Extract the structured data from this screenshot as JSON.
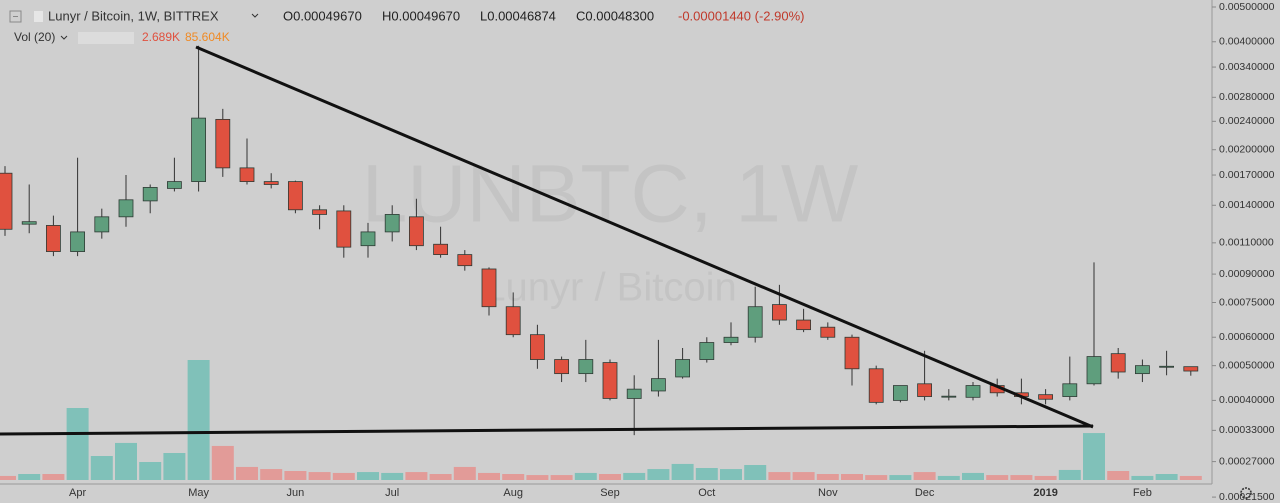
{
  "chart_data": {
    "type": "candlestick",
    "symbol": "Lunyr / Bitcoin, 1W, BITTREX",
    "ohlc_labels": [
      "O0.00049670",
      "H0.00049670",
      "L0.00046874",
      "C0.00048300"
    ],
    "change_label": "-0.00001440 (-2.90%)",
    "volume_title": "Vol (20)",
    "volume_labels": [
      "2.689K",
      "85.604K"
    ],
    "watermark": "LUNBTC, 1W",
    "watermark_sub": "Lunyr / Bitcoin",
    "categories": [
      null,
      null,
      null,
      "Apr",
      null,
      null,
      null,
      null,
      "May",
      null,
      null,
      null,
      "Jun",
      null,
      null,
      null,
      "Jul",
      null,
      null,
      null,
      null,
      "Aug",
      null,
      null,
      null,
      "Sep",
      null,
      null,
      null,
      "Oct",
      null,
      null,
      null,
      null,
      "Nov",
      null,
      null,
      null,
      "Dec",
      null,
      null,
      null,
      null,
      "2019",
      null,
      null,
      null,
      "Feb",
      null,
      null
    ],
    "open": [
      0.00172,
      0.00124,
      0.00123,
      0.00104,
      0.00118,
      0.0013,
      0.00144,
      0.00156,
      0.00163,
      0.00243,
      0.00178,
      0.00163,
      0.00163,
      0.00136,
      0.00135,
      0.00108,
      0.00118,
      0.0013,
      0.00109,
      0.00102,
      0.00093,
      0.00073,
      0.00061,
      0.00052,
      0.000475,
      0.00051,
      0.000405,
      0.000425,
      0.000465,
      0.00052,
      0.00058,
      0.0006,
      0.00074,
      0.00067,
      0.00064,
      0.0006,
      0.00049,
      0.0004,
      0.000445,
      0.00041,
      0.000408,
      0.00044,
      0.00042,
      0.000415,
      0.00041,
      0.000445,
      0.00054,
      0.000475,
      0.000497,
      0.0004967
    ],
    "high": [
      0.0018,
      0.0016,
      0.00131,
      0.0019,
      0.00137,
      0.0017,
      0.0016,
      0.0019,
      0.0039,
      0.0026,
      0.00215,
      0.00172,
      0.00164,
      0.0014,
      0.0014,
      0.00125,
      0.0014,
      0.00146,
      0.00122,
      0.00105,
      0.00094,
      0.0008,
      0.00065,
      0.00053,
      0.00059,
      0.00052,
      0.00047,
      0.00059,
      0.00056,
      0.0006,
      0.00066,
      0.00083,
      0.00084,
      0.00072,
      0.00066,
      0.00061,
      0.0005,
      0.00044,
      0.00055,
      0.00043,
      0.00045,
      0.00046,
      0.00046,
      0.00043,
      0.00053,
      0.00097,
      0.00056,
      0.00052,
      0.00055,
      0.0004967
    ],
    "low": [
      0.00115,
      0.00117,
      0.00101,
      0.00101,
      0.00113,
      0.00122,
      0.00133,
      0.00153,
      0.00153,
      0.00168,
      0.0016,
      0.00156,
      0.00133,
      0.0012,
      0.001,
      0.001,
      0.00111,
      0.00105,
      0.001,
      0.00092,
      0.00069,
      0.0006,
      0.00049,
      0.00045,
      0.00045,
      0.0004,
      0.00032,
      0.00041,
      0.00046,
      0.00051,
      0.00057,
      0.00058,
      0.00065,
      0.00062,
      0.00059,
      0.00044,
      0.00039,
      0.000395,
      0.0004,
      0.0004,
      0.0004,
      0.00041,
      0.00039,
      0.00039,
      0.0004,
      0.00044,
      0.00046,
      0.00045,
      0.00047,
      0.00046874
    ],
    "close": [
      0.0012,
      0.00126,
      0.00104,
      0.00118,
      0.0013,
      0.00145,
      0.00157,
      0.00163,
      0.00245,
      0.00178,
      0.00163,
      0.0016,
      0.00136,
      0.00132,
      0.00107,
      0.00118,
      0.00132,
      0.00108,
      0.00102,
      0.00095,
      0.00073,
      0.00061,
      0.00052,
      0.000475,
      0.00052,
      0.000405,
      0.00043,
      0.00046,
      0.00052,
      0.00058,
      0.0006,
      0.00073,
      0.00067,
      0.00063,
      0.0006,
      0.00049,
      0.000395,
      0.00044,
      0.00041,
      0.000411,
      0.00044,
      0.00042,
      0.00041,
      0.000403,
      0.000445,
      0.00053,
      0.00048,
      0.0005,
      0.000498,
      0.000483
    ],
    "volume": [
      2.7,
      4,
      4,
      48,
      16,
      24.7,
      12,
      18,
      80,
      22.7,
      8.7,
      7.3,
      6,
      5.3,
      4.7,
      5.3,
      4.7,
      5.3,
      4,
      8.7,
      4.7,
      4,
      3.3,
      3.3,
      4.7,
      4,
      4.7,
      7.3,
      10.7,
      8,
      7.3,
      10,
      5.3,
      5.3,
      4,
      4,
      3.3,
      3.3,
      5.3,
      2.7,
      4.7,
      3.3,
      3.3,
      2.7,
      6.7,
      31.3,
      6,
      2.7,
      4,
      2.689
    ],
    "vlim": [
      0,
      120
    ],
    "log": true,
    "ylim": [
      0.000207,
      0.00523
    ],
    "yticks": [
      {
        "value": 0.005,
        "label": "0.00500000"
      },
      {
        "value": 0.004,
        "label": "0.00400000"
      },
      {
        "value": 0.0034,
        "label": "0.00340000"
      },
      {
        "value": 0.0028,
        "label": "0.00280000"
      },
      {
        "value": 0.0024,
        "label": "0.00240000"
      },
      {
        "value": 0.002,
        "label": "0.00200000"
      },
      {
        "value": 0.0017,
        "label": "0.00170000"
      },
      {
        "value": 0.0014,
        "label": "0.00140000"
      },
      {
        "value": 0.0011,
        "label": "0.00110000"
      },
      {
        "value": 0.0009,
        "label": "0.00090000"
      },
      {
        "value": 0.00075,
        "label": "0.00075000"
      },
      {
        "value": 0.0006,
        "label": "0.00060000"
      },
      {
        "value": 0.0005,
        "label": "0.00050000"
      },
      {
        "value": 0.0004,
        "label": "0.00040000"
      },
      {
        "value": 0.00033,
        "label": "0.00033000"
      },
      {
        "value": 0.00027,
        "label": "0.00027000"
      },
      {
        "value": 0.000215,
        "label": "0.00021500"
      }
    ],
    "up_color": "#5f9e7d",
    "down_color": "#e0513f",
    "volume_up_color": "#80c1b9",
    "volume_down_color": "#e29b98"
  }
}
